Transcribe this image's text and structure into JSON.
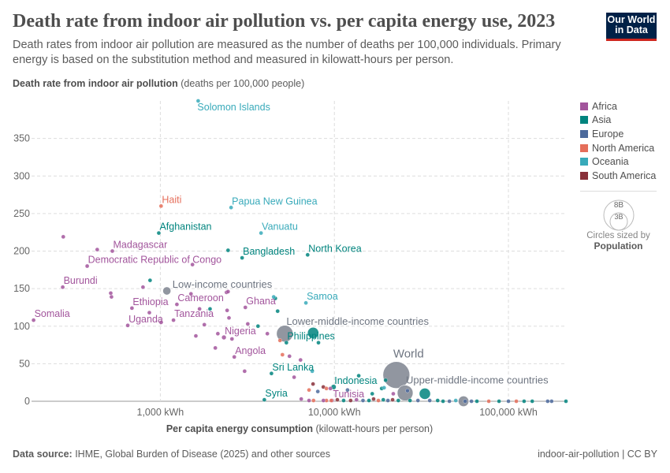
{
  "header": {
    "title": "Death rate from indoor air pollution vs. per capita energy use, 2023",
    "subtitle": "Death rates from indoor air pollution are measured as the number of deaths per 100,000 individuals. Primary energy is based on the substitution method and measured in kilowatt-hours per person.",
    "logo_line1": "Our World",
    "logo_line2": "in Data"
  },
  "footer": {
    "source_label": "Data source:",
    "source_text": " IHME, Global Burden of Disease (2025) and other sources",
    "right": "indoor-air-pollution | CC BY"
  },
  "legend": {
    "items": [
      {
        "label": "Africa",
        "color": "#A2559C"
      },
      {
        "label": "Asia",
        "color": "#00847E"
      },
      {
        "label": "Europe",
        "color": "#4C6A9C"
      },
      {
        "label": "North America",
        "color": "#E56E5A"
      },
      {
        "label": "Oceania",
        "color": "#38AABA"
      },
      {
        "label": "South America",
        "color": "#883039"
      }
    ],
    "size_big": "8B",
    "size_small": "3B",
    "size_caption": "Circles sized by",
    "size_variable": "Population"
  },
  "chart_data": {
    "type": "scatter",
    "title": "Death rate from indoor air pollution vs. per capita energy use, 2023",
    "ylabel_bold": "Death rate from indoor air pollution",
    "ylabel_unit": " (deaths per 100,000 people)",
    "xlabel_bold": "Per capita energy consumption",
    "xlabel_unit": " (kilowatt-hours per person)",
    "x_scale": "log",
    "xlim": [
      182,
      214000
    ],
    "ylim": [
      0,
      400
    ],
    "x_ticks": [
      1000,
      10000,
      100000
    ],
    "x_tick_labels": [
      "1,000 kWh",
      "10,000 kWh",
      "100,000 kWh"
    ],
    "y_ticks": [
      0,
      50,
      100,
      150,
      200,
      250,
      300,
      350
    ],
    "y_tick_labels": [
      "0",
      "50",
      "100",
      "150",
      "200",
      "250",
      "300",
      "350"
    ],
    "grid": true,
    "legend_placement": "right",
    "size_variable": "Population (millions)",
    "income_color": "#858B96",
    "points": [
      {
        "name": "Solomon Islands",
        "region": "Oceania",
        "x": 1650,
        "y": 400,
        "pop": 0.8
      },
      {
        "name": "Haiti",
        "region": "North America",
        "x": 1010,
        "y": 260,
        "pop": 11.7
      },
      {
        "name": "Papua New Guinea",
        "region": "Oceania",
        "x": 2550,
        "y": 258,
        "pop": 10.3
      },
      {
        "name": "Afghanistan",
        "region": "Asia",
        "x": 980,
        "y": 224,
        "pop": 41
      },
      {
        "name": "Vanuatu",
        "region": "Oceania",
        "x": 3790,
        "y": 224,
        "pop": 0.3
      },
      {
        "name": "Bangladesh",
        "region": "Asia",
        "x": 2950,
        "y": 191,
        "pop": 171
      },
      {
        "name": "North Korea",
        "region": "Asia",
        "x": 7020,
        "y": 195,
        "pop": 26
      },
      {
        "name": "Madagascar",
        "region": "Africa",
        "x": 530,
        "y": 200,
        "pop": 31
      },
      {
        "name": "Democratic Republic of Congo",
        "region": "Africa",
        "x": 380,
        "y": 180,
        "pop": 105
      },
      {
        "name": "Burundi",
        "region": "Africa",
        "x": 275,
        "y": 152,
        "pop": 13
      },
      {
        "name": "Low-income countries",
        "region": "income",
        "x": 1090,
        "y": 147,
        "pop": 740
      },
      {
        "name": "Ethiopia",
        "region": "Africa",
        "x": 687,
        "y": 124,
        "pop": 128
      },
      {
        "name": "Cameroon",
        "region": "Africa",
        "x": 1245,
        "y": 129,
        "pop": 28
      },
      {
        "name": "Somalia",
        "region": "Africa",
        "x": 187,
        "y": 108,
        "pop": 18
      },
      {
        "name": "Uganda",
        "region": "Africa",
        "x": 650,
        "y": 101,
        "pop": 48
      },
      {
        "name": "Tanzania",
        "region": "Africa",
        "x": 1190,
        "y": 108,
        "pop": 67
      },
      {
        "name": "Ghana",
        "region": "Africa",
        "x": 3080,
        "y": 125,
        "pop": 34
      },
      {
        "name": "Samoa",
        "region": "Oceania",
        "x": 6860,
        "y": 131,
        "pop": 0.2
      },
      {
        "name": "Nigeria",
        "region": "Africa",
        "x": 2320,
        "y": 85,
        "pop": 228
      },
      {
        "name": "Lower-middle-income countries",
        "region": "income",
        "x": 5190,
        "y": 90,
        "pop": 3100
      },
      {
        "name": "",
        "region": "Asia",
        "x": 7550,
        "y": 91,
        "pop": 1440
      },
      {
        "name": "Philippines",
        "region": "Asia",
        "x": 5300,
        "y": 78,
        "pop": 115
      },
      {
        "name": "Angola",
        "region": "Africa",
        "x": 2660,
        "y": 59,
        "pop": 37
      },
      {
        "name": "Sri Lanka",
        "region": "Asia",
        "x": 4350,
        "y": 37,
        "pop": 22
      },
      {
        "name": "Syria",
        "region": "Asia",
        "x": 3960,
        "y": 2,
        "pop": 23
      },
      {
        "name": "Indonesia",
        "region": "Asia",
        "x": 9900,
        "y": 19,
        "pop": 278
      },
      {
        "name": "Tunisia",
        "region": "Africa",
        "x": 9700,
        "y": 1,
        "pop": 12
      },
      {
        "name": "World",
        "region": "income",
        "x": 22700,
        "y": 35,
        "pop": 8100
      },
      {
        "name": "Upper-middle-income countries",
        "region": "income",
        "x": 25500,
        "y": 11,
        "pop": 2800
      },
      {
        "name": "",
        "region": "Asia",
        "x": 33100,
        "y": 10,
        "pop": 1420
      },
      {
        "name": "",
        "region": "income",
        "x": 55200,
        "y": 0,
        "pop": 1250
      },
      {
        "name": "",
        "region": "Africa",
        "x": 277,
        "y": 219,
        "pop": 8
      },
      {
        "name": "",
        "region": "Africa",
        "x": 434,
        "y": 202,
        "pop": 8
      },
      {
        "name": "",
        "region": "Asia",
        "x": 2450,
        "y": 201,
        "pop": 5
      },
      {
        "name": "",
        "region": "Africa",
        "x": 1530,
        "y": 182,
        "pop": 6
      },
      {
        "name": "",
        "region": "Asia",
        "x": 873,
        "y": 161,
        "pop": 5
      },
      {
        "name": "",
        "region": "Africa",
        "x": 795,
        "y": 152,
        "pop": 6
      },
      {
        "name": "",
        "region": "Africa",
        "x": 519,
        "y": 144,
        "pop": 5
      },
      {
        "name": "",
        "region": "Africa",
        "x": 524,
        "y": 139,
        "pop": 5
      },
      {
        "name": "",
        "region": "Africa",
        "x": 1500,
        "y": 143,
        "pop": 5
      },
      {
        "name": "",
        "region": "Africa",
        "x": 2400,
        "y": 145,
        "pop": 6
      },
      {
        "name": "",
        "region": "Africa",
        "x": 2450,
        "y": 146,
        "pop": 5
      },
      {
        "name": "",
        "region": "Oceania",
        "x": 4480,
        "y": 139,
        "pop": 1
      },
      {
        "name": "",
        "region": "Asia",
        "x": 4580,
        "y": 137,
        "pop": 6
      },
      {
        "name": "",
        "region": "Africa",
        "x": 865,
        "y": 118,
        "pop": 6
      },
      {
        "name": "",
        "region": "Africa",
        "x": 1680,
        "y": 123,
        "pop": 5
      },
      {
        "name": "",
        "region": "Asia",
        "x": 1930,
        "y": 123,
        "pop": 5
      },
      {
        "name": "",
        "region": "Africa",
        "x": 2420,
        "y": 121,
        "pop": 5
      },
      {
        "name": "",
        "region": "Africa",
        "x": 2480,
        "y": 111,
        "pop": 5
      },
      {
        "name": "",
        "region": "Asia",
        "x": 4720,
        "y": 120,
        "pop": 5
      },
      {
        "name": "",
        "region": "Africa",
        "x": 1010,
        "y": 105,
        "pop": 3
      },
      {
        "name": "",
        "region": "Africa",
        "x": 1790,
        "y": 102,
        "pop": 5
      },
      {
        "name": "",
        "region": "Africa",
        "x": 3180,
        "y": 103,
        "pop": 5
      },
      {
        "name": "",
        "region": "Asia",
        "x": 3640,
        "y": 100,
        "pop": 35
      },
      {
        "name": "",
        "region": "Africa",
        "x": 1600,
        "y": 87,
        "pop": 5
      },
      {
        "name": "",
        "region": "Africa",
        "x": 2140,
        "y": 90,
        "pop": 5
      },
      {
        "name": "",
        "region": "Africa",
        "x": 2580,
        "y": 83,
        "pop": 5
      },
      {
        "name": "",
        "region": "Africa",
        "x": 4120,
        "y": 90,
        "pop": 5
      },
      {
        "name": "",
        "region": "North America",
        "x": 4870,
        "y": 81,
        "pop": 5
      },
      {
        "name": "",
        "region": "Asia",
        "x": 8100,
        "y": 78,
        "pop": 5
      },
      {
        "name": "",
        "region": "Africa",
        "x": 2070,
        "y": 71,
        "pop": 5
      },
      {
        "name": "",
        "region": "North America",
        "x": 5030,
        "y": 62,
        "pop": 5
      },
      {
        "name": "",
        "region": "Africa",
        "x": 5520,
        "y": 60,
        "pop": 5
      },
      {
        "name": "",
        "region": "Africa",
        "x": 6390,
        "y": 55,
        "pop": 5
      },
      {
        "name": "",
        "region": "Africa",
        "x": 3050,
        "y": 40,
        "pop": 5
      },
      {
        "name": "",
        "region": "Africa",
        "x": 5870,
        "y": 32,
        "pop": 5
      },
      {
        "name": "",
        "region": "Oceania",
        "x": 7460,
        "y": 40,
        "pop": 1
      },
      {
        "name": "",
        "region": "South America",
        "x": 7540,
        "y": 23,
        "pop": 5
      },
      {
        "name": "",
        "region": "North America",
        "x": 7150,
        "y": 15,
        "pop": 5
      },
      {
        "name": "",
        "region": "Europe",
        "x": 8030,
        "y": 13,
        "pop": 5
      },
      {
        "name": "",
        "region": "South America",
        "x": 8640,
        "y": 19,
        "pop": 5
      },
      {
        "name": "",
        "region": "North America",
        "x": 9000,
        "y": 17,
        "pop": 5
      },
      {
        "name": "",
        "region": "Africa",
        "x": 9490,
        "y": 17,
        "pop": 5
      },
      {
        "name": "",
        "region": "Africa",
        "x": 6450,
        "y": 3,
        "pop": 5
      },
      {
        "name": "",
        "region": "Africa",
        "x": 7150,
        "y": 1,
        "pop": 5
      },
      {
        "name": "",
        "region": "North America",
        "x": 7590,
        "y": 1,
        "pop": 5
      },
      {
        "name": "",
        "region": "North America",
        "x": 9000,
        "y": 1,
        "pop": 5
      },
      {
        "name": "",
        "region": "Asia",
        "x": 19700,
        "y": 28,
        "pop": 5
      },
      {
        "name": "",
        "region": "Asia",
        "x": 13800,
        "y": 34,
        "pop": 5
      },
      {
        "name": "",
        "region": "Europe",
        "x": 11900,
        "y": 15,
        "pop": 5
      },
      {
        "name": "",
        "region": "Asia",
        "x": 16500,
        "y": 10,
        "pop": 5
      },
      {
        "name": "",
        "region": "Asia",
        "x": 18700,
        "y": 17,
        "pop": 5
      },
      {
        "name": "",
        "region": "Oceania",
        "x": 19300,
        "y": 18,
        "pop": 1
      },
      {
        "name": "",
        "region": "Africa",
        "x": 21800,
        "y": 10,
        "pop": 5
      },
      {
        "name": "",
        "region": "Europe",
        "x": 26300,
        "y": 14,
        "pop": 5
      },
      {
        "name": "",
        "region": "Africa",
        "x": 8650,
        "y": 1,
        "pop": 5
      },
      {
        "name": "",
        "region": "North America",
        "x": 9600,
        "y": 1,
        "pop": 5
      },
      {
        "name": "",
        "region": "South America",
        "x": 10400,
        "y": 2,
        "pop": 5
      },
      {
        "name": "",
        "region": "Asia",
        "x": 11300,
        "y": 1,
        "pop": 5
      },
      {
        "name": "",
        "region": "South America",
        "x": 12400,
        "y": 1,
        "pop": 5
      },
      {
        "name": "",
        "region": "Africa",
        "x": 13400,
        "y": 2,
        "pop": 5
      },
      {
        "name": "",
        "region": "Europe",
        "x": 14600,
        "y": 1,
        "pop": 5
      },
      {
        "name": "",
        "region": "Asia",
        "x": 15800,
        "y": 1,
        "pop": 5
      },
      {
        "name": "",
        "region": "South America",
        "x": 16800,
        "y": 3,
        "pop": 5
      },
      {
        "name": "",
        "region": "North America",
        "x": 17900,
        "y": 1,
        "pop": 5
      },
      {
        "name": "",
        "region": "Asia",
        "x": 19100,
        "y": 2,
        "pop": 5
      },
      {
        "name": "",
        "region": "Europe",
        "x": 20300,
        "y": 1,
        "pop": 5
      },
      {
        "name": "",
        "region": "South America",
        "x": 21600,
        "y": 2,
        "pop": 5
      },
      {
        "name": "",
        "region": "Asia",
        "x": 23300,
        "y": 1,
        "pop": 5
      },
      {
        "name": "",
        "region": "Asia",
        "x": 27200,
        "y": 1,
        "pop": 5
      },
      {
        "name": "",
        "region": "Europe",
        "x": 30200,
        "y": 1,
        "pop": 5
      },
      {
        "name": "",
        "region": "Europe",
        "x": 35300,
        "y": 1,
        "pop": 5
      },
      {
        "name": "",
        "region": "Asia",
        "x": 39200,
        "y": 1,
        "pop": 5
      },
      {
        "name": "",
        "region": "Asia",
        "x": 42100,
        "y": 0,
        "pop": 5
      },
      {
        "name": "",
        "region": "Europe",
        "x": 45800,
        "y": 0,
        "pop": 5
      },
      {
        "name": "",
        "region": "Oceania",
        "x": 49800,
        "y": 1,
        "pop": 5
      },
      {
        "name": "",
        "region": "Europe",
        "x": 56400,
        "y": 0,
        "pop": 5
      },
      {
        "name": "",
        "region": "Europe",
        "x": 61300,
        "y": 0,
        "pop": 5
      },
      {
        "name": "",
        "region": "Asia",
        "x": 65900,
        "y": 0,
        "pop": 5
      },
      {
        "name": "",
        "region": "North America",
        "x": 77100,
        "y": 0,
        "pop": 40
      },
      {
        "name": "",
        "region": "Asia",
        "x": 88300,
        "y": 0,
        "pop": 5
      },
      {
        "name": "",
        "region": "Europe",
        "x": 100000,
        "y": 0,
        "pop": 5
      },
      {
        "name": "",
        "region": "North America",
        "x": 111000,
        "y": 0,
        "pop": 5
      },
      {
        "name": "",
        "region": "Asia",
        "x": 123000,
        "y": 0,
        "pop": 5
      },
      {
        "name": "",
        "region": "Asia",
        "x": 137000,
        "y": 0,
        "pop": 5
      },
      {
        "name": "",
        "region": "Europe",
        "x": 168000,
        "y": 0,
        "pop": 5
      },
      {
        "name": "",
        "region": "Europe",
        "x": 177000,
        "y": 0,
        "pop": 5
      },
      {
        "name": "",
        "region": "Asia",
        "x": 214000,
        "y": 0,
        "pop": 5
      }
    ]
  }
}
